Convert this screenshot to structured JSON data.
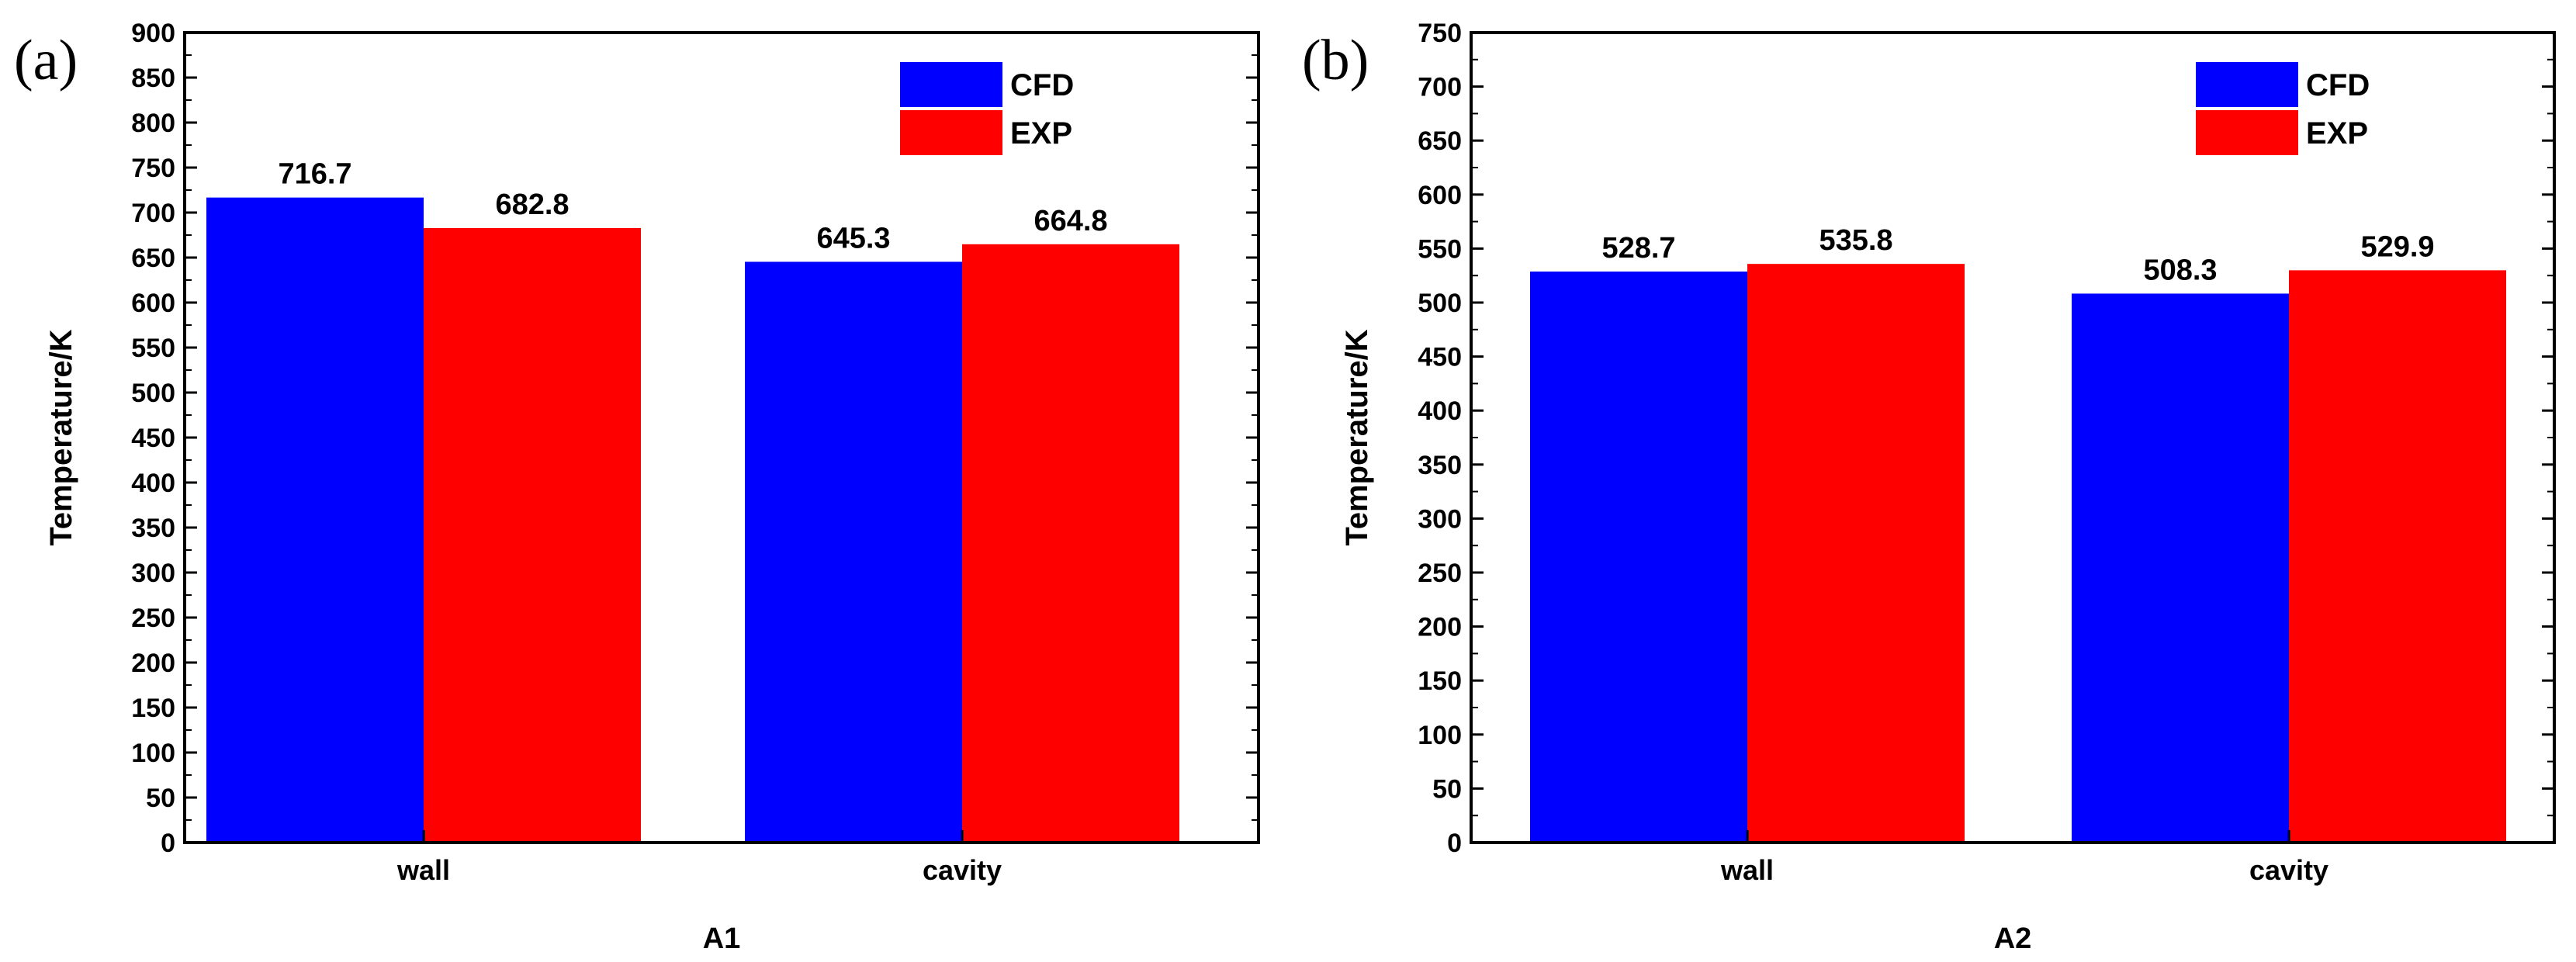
{
  "chart_data": [
    {
      "type": "bar",
      "panel_label": "(a)",
      "title": "",
      "xlabel": "A1",
      "ylabel": "Temperature/K",
      "categories": [
        "wall",
        "cavity"
      ],
      "ylim": [
        0,
        900
      ],
      "ytick_step": 50,
      "legend_position": "top-right",
      "series": [
        {
          "name": "CFD",
          "color": "#0000ff",
          "values": [
            716.7,
            645.3
          ],
          "labels": [
            "716.7",
            "645.3"
          ]
        },
        {
          "name": "EXP",
          "color": "#ff0000",
          "values": [
            682.8,
            664.8
          ],
          "labels": [
            "682.8",
            "664.8"
          ]
        }
      ]
    },
    {
      "type": "bar",
      "panel_label": "(b)",
      "title": "",
      "xlabel": "A2",
      "ylabel": "Temperature/K",
      "categories": [
        "wall",
        "cavity"
      ],
      "ylim": [
        0,
        750
      ],
      "ytick_step": 50,
      "legend_position": "top-right",
      "series": [
        {
          "name": "CFD",
          "color": "#0000ff",
          "values": [
            528.7,
            508.3
          ],
          "labels": [
            "528.7",
            "508.3"
          ]
        },
        {
          "name": "EXP",
          "color": "#ff0000",
          "values": [
            535.8,
            529.9
          ],
          "labels": [
            "535.8",
            "529.9"
          ]
        }
      ]
    }
  ]
}
